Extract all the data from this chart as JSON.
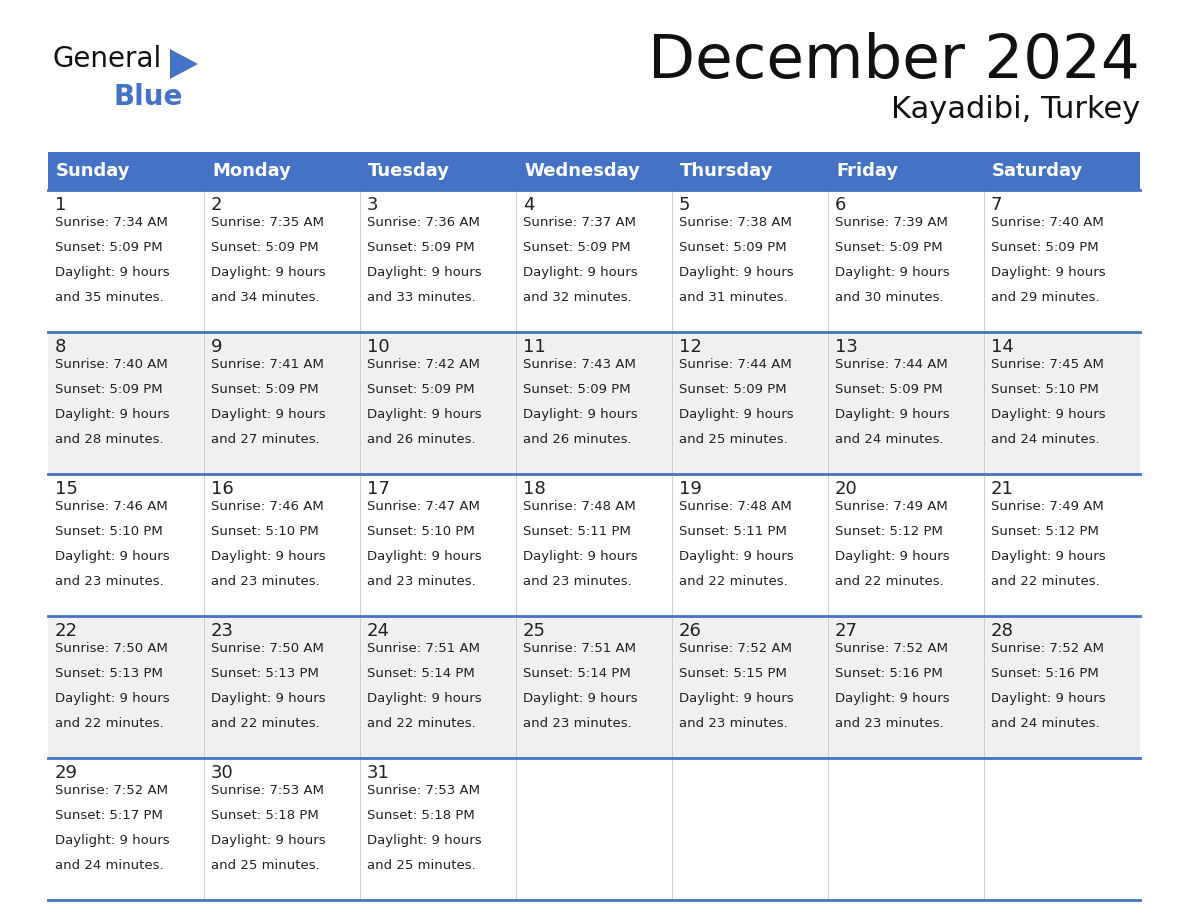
{
  "title": "December 2024",
  "subtitle": "Kayadibi, Turkey",
  "header_color": "#4472C4",
  "header_text_color": "#FFFFFF",
  "day_names": [
    "Sunday",
    "Monday",
    "Tuesday",
    "Wednesday",
    "Thursday",
    "Friday",
    "Saturday"
  ],
  "background_color": "#FFFFFF",
  "row_line_color": "#4472C4",
  "text_color": "#222222",
  "days": [
    {
      "day": 1,
      "col": 0,
      "row": 0,
      "sunrise": "7:34 AM",
      "sunset": "5:09 PM",
      "daylight": "9 hours and 35 minutes."
    },
    {
      "day": 2,
      "col": 1,
      "row": 0,
      "sunrise": "7:35 AM",
      "sunset": "5:09 PM",
      "daylight": "9 hours and 34 minutes."
    },
    {
      "day": 3,
      "col": 2,
      "row": 0,
      "sunrise": "7:36 AM",
      "sunset": "5:09 PM",
      "daylight": "9 hours and 33 minutes."
    },
    {
      "day": 4,
      "col": 3,
      "row": 0,
      "sunrise": "7:37 AM",
      "sunset": "5:09 PM",
      "daylight": "9 hours and 32 minutes."
    },
    {
      "day": 5,
      "col": 4,
      "row": 0,
      "sunrise": "7:38 AM",
      "sunset": "5:09 PM",
      "daylight": "9 hours and 31 minutes."
    },
    {
      "day": 6,
      "col": 5,
      "row": 0,
      "sunrise": "7:39 AM",
      "sunset": "5:09 PM",
      "daylight": "9 hours and 30 minutes."
    },
    {
      "day": 7,
      "col": 6,
      "row": 0,
      "sunrise": "7:40 AM",
      "sunset": "5:09 PM",
      "daylight": "9 hours and 29 minutes."
    },
    {
      "day": 8,
      "col": 0,
      "row": 1,
      "sunrise": "7:40 AM",
      "sunset": "5:09 PM",
      "daylight": "9 hours and 28 minutes."
    },
    {
      "day": 9,
      "col": 1,
      "row": 1,
      "sunrise": "7:41 AM",
      "sunset": "5:09 PM",
      "daylight": "9 hours and 27 minutes."
    },
    {
      "day": 10,
      "col": 2,
      "row": 1,
      "sunrise": "7:42 AM",
      "sunset": "5:09 PM",
      "daylight": "9 hours and 26 minutes."
    },
    {
      "day": 11,
      "col": 3,
      "row": 1,
      "sunrise": "7:43 AM",
      "sunset": "5:09 PM",
      "daylight": "9 hours and 26 minutes."
    },
    {
      "day": 12,
      "col": 4,
      "row": 1,
      "sunrise": "7:44 AM",
      "sunset": "5:09 PM",
      "daylight": "9 hours and 25 minutes."
    },
    {
      "day": 13,
      "col": 5,
      "row": 1,
      "sunrise": "7:44 AM",
      "sunset": "5:09 PM",
      "daylight": "9 hours and 24 minutes."
    },
    {
      "day": 14,
      "col": 6,
      "row": 1,
      "sunrise": "7:45 AM",
      "sunset": "5:10 PM",
      "daylight": "9 hours and 24 minutes."
    },
    {
      "day": 15,
      "col": 0,
      "row": 2,
      "sunrise": "7:46 AM",
      "sunset": "5:10 PM",
      "daylight": "9 hours and 23 minutes."
    },
    {
      "day": 16,
      "col": 1,
      "row": 2,
      "sunrise": "7:46 AM",
      "sunset": "5:10 PM",
      "daylight": "9 hours and 23 minutes."
    },
    {
      "day": 17,
      "col": 2,
      "row": 2,
      "sunrise": "7:47 AM",
      "sunset": "5:10 PM",
      "daylight": "9 hours and 23 minutes."
    },
    {
      "day": 18,
      "col": 3,
      "row": 2,
      "sunrise": "7:48 AM",
      "sunset": "5:11 PM",
      "daylight": "9 hours and 23 minutes."
    },
    {
      "day": 19,
      "col": 4,
      "row": 2,
      "sunrise": "7:48 AM",
      "sunset": "5:11 PM",
      "daylight": "9 hours and 22 minutes."
    },
    {
      "day": 20,
      "col": 5,
      "row": 2,
      "sunrise": "7:49 AM",
      "sunset": "5:12 PM",
      "daylight": "9 hours and 22 minutes."
    },
    {
      "day": 21,
      "col": 6,
      "row": 2,
      "sunrise": "7:49 AM",
      "sunset": "5:12 PM",
      "daylight": "9 hours and 22 minutes."
    },
    {
      "day": 22,
      "col": 0,
      "row": 3,
      "sunrise": "7:50 AM",
      "sunset": "5:13 PM",
      "daylight": "9 hours and 22 minutes."
    },
    {
      "day": 23,
      "col": 1,
      "row": 3,
      "sunrise": "7:50 AM",
      "sunset": "5:13 PM",
      "daylight": "9 hours and 22 minutes."
    },
    {
      "day": 24,
      "col": 2,
      "row": 3,
      "sunrise": "7:51 AM",
      "sunset": "5:14 PM",
      "daylight": "9 hours and 22 minutes."
    },
    {
      "day": 25,
      "col": 3,
      "row": 3,
      "sunrise": "7:51 AM",
      "sunset": "5:14 PM",
      "daylight": "9 hours and 23 minutes."
    },
    {
      "day": 26,
      "col": 4,
      "row": 3,
      "sunrise": "7:52 AM",
      "sunset": "5:15 PM",
      "daylight": "9 hours and 23 minutes."
    },
    {
      "day": 27,
      "col": 5,
      "row": 3,
      "sunrise": "7:52 AM",
      "sunset": "5:16 PM",
      "daylight": "9 hours and 23 minutes."
    },
    {
      "day": 28,
      "col": 6,
      "row": 3,
      "sunrise": "7:52 AM",
      "sunset": "5:16 PM",
      "daylight": "9 hours and 24 minutes."
    },
    {
      "day": 29,
      "col": 0,
      "row": 4,
      "sunrise": "7:52 AM",
      "sunset": "5:17 PM",
      "daylight": "9 hours and 24 minutes."
    },
    {
      "day": 30,
      "col": 1,
      "row": 4,
      "sunrise": "7:53 AM",
      "sunset": "5:18 PM",
      "daylight": "9 hours and 25 minutes."
    },
    {
      "day": 31,
      "col": 2,
      "row": 4,
      "sunrise": "7:53 AM",
      "sunset": "5:18 PM",
      "daylight": "9 hours and 25 minutes."
    }
  ]
}
